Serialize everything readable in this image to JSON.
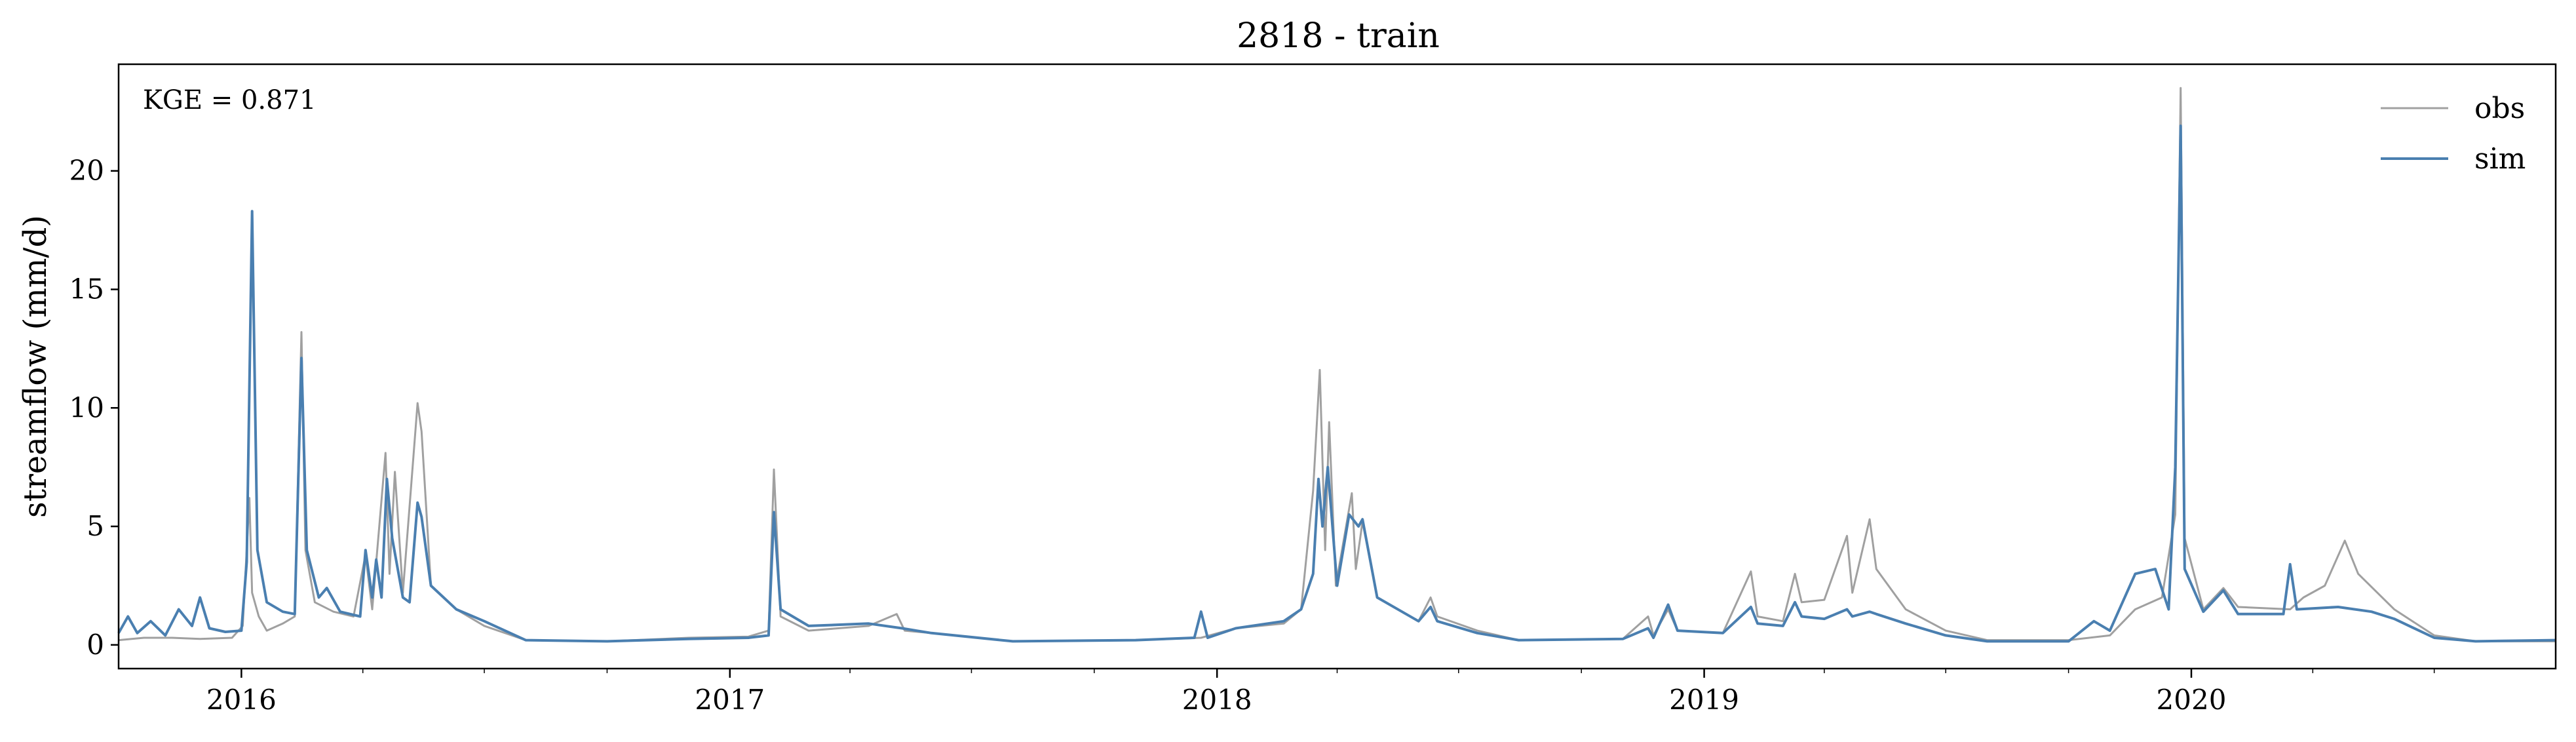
{
  "chart_data": {
    "type": "line",
    "title": "2818 - train",
    "xlabel": "",
    "ylabel": "streamflow (mm/d)",
    "annotation": "KGE = 0.871",
    "xlim": [
      "2015-10-01",
      "2020-09-30"
    ],
    "ylim": [
      -1.0,
      24.5
    ],
    "x_ticks": [
      "2016-01-01",
      "2017-01-01",
      "2018-01-01",
      "2019-01-01",
      "2020-01-01"
    ],
    "x_tick_labels": [
      "2016",
      "2017",
      "2018",
      "2019",
      "2020"
    ],
    "y_ticks": [
      0,
      5,
      10,
      15,
      20
    ],
    "y_tick_labels": [
      "0",
      "5",
      "10",
      "15",
      "20"
    ],
    "legend_position": "top-right",
    "grid": false,
    "series": [
      {
        "name": "obs",
        "color": "#a0a0a0",
        "points": [
          [
            "2015-10-01",
            0.2
          ],
          [
            "2015-10-20",
            0.3
          ],
          [
            "2015-11-10",
            0.3
          ],
          [
            "2015-12-01",
            0.25
          ],
          [
            "2015-12-25",
            0.3
          ],
          [
            "2016-01-02",
            0.8
          ],
          [
            "2016-01-07",
            6.2
          ],
          [
            "2016-01-09",
            2.2
          ],
          [
            "2016-01-14",
            1.2
          ],
          [
            "2016-01-20",
            0.6
          ],
          [
            "2016-02-01",
            0.9
          ],
          [
            "2016-02-10",
            1.2
          ],
          [
            "2016-02-15",
            13.2
          ],
          [
            "2016-02-18",
            4.0
          ],
          [
            "2016-02-25",
            1.8
          ],
          [
            "2016-03-10",
            1.4
          ],
          [
            "2016-03-25",
            1.2
          ],
          [
            "2016-04-03",
            3.8
          ],
          [
            "2016-04-08",
            1.5
          ],
          [
            "2016-04-18",
            8.1
          ],
          [
            "2016-04-21",
            3.0
          ],
          [
            "2016-04-25",
            7.3
          ],
          [
            "2016-05-01",
            2.2
          ],
          [
            "2016-05-12",
            10.2
          ],
          [
            "2016-05-15",
            9.0
          ],
          [
            "2016-05-22",
            2.5
          ],
          [
            "2016-06-10",
            1.5
          ],
          [
            "2016-07-01",
            0.8
          ],
          [
            "2016-08-01",
            0.2
          ],
          [
            "2016-10-01",
            0.15
          ],
          [
            "2016-12-01",
            0.3
          ],
          [
            "2017-01-15",
            0.35
          ],
          [
            "2017-01-30",
            0.6
          ],
          [
            "2017-02-03",
            7.4
          ],
          [
            "2017-02-08",
            1.2
          ],
          [
            "2017-03-01",
            0.6
          ],
          [
            "2017-04-15",
            0.8
          ],
          [
            "2017-05-06",
            1.3
          ],
          [
            "2017-05-12",
            0.6
          ],
          [
            "2017-06-01",
            0.5
          ],
          [
            "2017-08-01",
            0.15
          ],
          [
            "2017-11-01",
            0.2
          ],
          [
            "2017-12-20",
            0.3
          ],
          [
            "2018-01-15",
            0.7
          ],
          [
            "2018-02-20",
            0.9
          ],
          [
            "2018-03-05",
            1.5
          ],
          [
            "2018-03-14",
            6.5
          ],
          [
            "2018-03-19",
            11.6
          ],
          [
            "2018-03-23",
            4.0
          ],
          [
            "2018-03-26",
            9.4
          ],
          [
            "2018-03-31",
            2.5
          ],
          [
            "2018-04-12",
            6.4
          ],
          [
            "2018-04-15",
            3.2
          ],
          [
            "2018-04-20",
            5.2
          ],
          [
            "2018-05-01",
            2.0
          ],
          [
            "2018-06-01",
            1.0
          ],
          [
            "2018-06-10",
            2.0
          ],
          [
            "2018-06-15",
            1.2
          ],
          [
            "2018-07-15",
            0.6
          ],
          [
            "2018-08-15",
            0.2
          ],
          [
            "2018-11-01",
            0.25
          ],
          [
            "2018-11-20",
            1.2
          ],
          [
            "2018-11-24",
            0.4
          ],
          [
            "2018-12-05",
            1.5
          ],
          [
            "2018-12-12",
            0.6
          ],
          [
            "2019-01-15",
            0.5
          ],
          [
            "2019-02-05",
            3.1
          ],
          [
            "2019-02-10",
            1.2
          ],
          [
            "2019-03-01",
            1.0
          ],
          [
            "2019-03-10",
            3.0
          ],
          [
            "2019-03-15",
            1.8
          ],
          [
            "2019-04-01",
            1.9
          ],
          [
            "2019-04-18",
            4.6
          ],
          [
            "2019-04-22",
            2.2
          ],
          [
            "2019-05-05",
            5.3
          ],
          [
            "2019-05-10",
            3.2
          ],
          [
            "2019-06-01",
            1.5
          ],
          [
            "2019-07-01",
            0.6
          ],
          [
            "2019-08-01",
            0.2
          ],
          [
            "2019-10-01",
            0.2
          ],
          [
            "2019-11-01",
            0.4
          ],
          [
            "2019-11-20",
            1.5
          ],
          [
            "2019-12-10",
            2.0
          ],
          [
            "2019-12-20",
            5.5
          ],
          [
            "2019-12-24",
            23.5
          ],
          [
            "2019-12-27",
            4.5
          ],
          [
            "2020-01-10",
            1.5
          ],
          [
            "2020-01-25",
            2.4
          ],
          [
            "2020-02-05",
            1.6
          ],
          [
            "2020-03-15",
            1.5
          ],
          [
            "2020-03-25",
            2.0
          ],
          [
            "2020-04-10",
            2.5
          ],
          [
            "2020-04-25",
            4.4
          ],
          [
            "2020-05-05",
            3.0
          ],
          [
            "2020-06-01",
            1.5
          ],
          [
            "2020-07-01",
            0.4
          ],
          [
            "2020-08-01",
            0.15
          ],
          [
            "2020-09-30",
            0.15
          ]
        ]
      },
      {
        "name": "sim",
        "color": "#4a7fb0",
        "points": [
          [
            "2015-10-01",
            0.5
          ],
          [
            "2015-10-08",
            1.2
          ],
          [
            "2015-10-15",
            0.5
          ],
          [
            "2015-10-25",
            1.0
          ],
          [
            "2015-11-05",
            0.4
          ],
          [
            "2015-11-15",
            1.5
          ],
          [
            "2015-11-25",
            0.8
          ],
          [
            "2015-12-01",
            2.0
          ],
          [
            "2015-12-08",
            0.7
          ],
          [
            "2015-12-20",
            0.55
          ],
          [
            "2016-01-01",
            0.6
          ],
          [
            "2016-01-05",
            3.5
          ],
          [
            "2016-01-09",
            18.3
          ],
          [
            "2016-01-13",
            4.0
          ],
          [
            "2016-01-20",
            1.8
          ],
          [
            "2016-02-01",
            1.4
          ],
          [
            "2016-02-10",
            1.3
          ],
          [
            "2016-02-15",
            12.1
          ],
          [
            "2016-02-19",
            4.0
          ],
          [
            "2016-02-28",
            2.0
          ],
          [
            "2016-03-05",
            2.4
          ],
          [
            "2016-03-15",
            1.4
          ],
          [
            "2016-03-30",
            1.2
          ],
          [
            "2016-04-03",
            4.0
          ],
          [
            "2016-04-08",
            2.0
          ],
          [
            "2016-04-11",
            3.6
          ],
          [
            "2016-04-15",
            2.0
          ],
          [
            "2016-04-19",
            7.0
          ],
          [
            "2016-04-23",
            4.5
          ],
          [
            "2016-05-01",
            2.0
          ],
          [
            "2016-05-06",
            1.8
          ],
          [
            "2016-05-12",
            6.0
          ],
          [
            "2016-05-15",
            5.4
          ],
          [
            "2016-05-22",
            2.5
          ],
          [
            "2016-06-10",
            1.5
          ],
          [
            "2016-07-01",
            1.0
          ],
          [
            "2016-08-01",
            0.2
          ],
          [
            "2016-10-01",
            0.15
          ],
          [
            "2016-12-01",
            0.25
          ],
          [
            "2017-01-15",
            0.3
          ],
          [
            "2017-01-30",
            0.4
          ],
          [
            "2017-02-03",
            5.6
          ],
          [
            "2017-02-08",
            1.5
          ],
          [
            "2017-03-01",
            0.8
          ],
          [
            "2017-04-15",
            0.9
          ],
          [
            "2017-05-10",
            0.7
          ],
          [
            "2017-06-01",
            0.5
          ],
          [
            "2017-08-01",
            0.15
          ],
          [
            "2017-11-01",
            0.2
          ],
          [
            "2017-12-15",
            0.3
          ],
          [
            "2017-12-20",
            1.4
          ],
          [
            "2017-12-25",
            0.3
          ],
          [
            "2018-01-15",
            0.7
          ],
          [
            "2018-02-20",
            1.0
          ],
          [
            "2018-03-05",
            1.5
          ],
          [
            "2018-03-14",
            3.0
          ],
          [
            "2018-03-18",
            7.0
          ],
          [
            "2018-03-21",
            5.0
          ],
          [
            "2018-03-25",
            7.5
          ],
          [
            "2018-04-01",
            2.5
          ],
          [
            "2018-04-10",
            5.5
          ],
          [
            "2018-04-17",
            5.0
          ],
          [
            "2018-04-20",
            5.3
          ],
          [
            "2018-05-01",
            2.0
          ],
          [
            "2018-06-01",
            1.0
          ],
          [
            "2018-06-10",
            1.6
          ],
          [
            "2018-06-15",
            1.0
          ],
          [
            "2018-07-15",
            0.5
          ],
          [
            "2018-08-15",
            0.2
          ],
          [
            "2018-11-01",
            0.25
          ],
          [
            "2018-11-20",
            0.7
          ],
          [
            "2018-11-24",
            0.3
          ],
          [
            "2018-12-05",
            1.7
          ],
          [
            "2018-12-12",
            0.6
          ],
          [
            "2019-01-15",
            0.5
          ],
          [
            "2019-02-05",
            1.6
          ],
          [
            "2019-02-10",
            0.9
          ],
          [
            "2019-03-01",
            0.8
          ],
          [
            "2019-03-10",
            1.8
          ],
          [
            "2019-03-15",
            1.2
          ],
          [
            "2019-04-01",
            1.1
          ],
          [
            "2019-04-18",
            1.5
          ],
          [
            "2019-04-22",
            1.2
          ],
          [
            "2019-05-05",
            1.4
          ],
          [
            "2019-05-10",
            1.3
          ],
          [
            "2019-06-01",
            0.9
          ],
          [
            "2019-07-01",
            0.4
          ],
          [
            "2019-08-01",
            0.15
          ],
          [
            "2019-10-01",
            0.15
          ],
          [
            "2019-10-20",
            1.0
          ],
          [
            "2019-11-01",
            0.6
          ],
          [
            "2019-11-20",
            3.0
          ],
          [
            "2019-12-05",
            3.2
          ],
          [
            "2019-12-15",
            1.5
          ],
          [
            "2019-12-20",
            7.5
          ],
          [
            "2019-12-24",
            21.9
          ],
          [
            "2019-12-27",
            3.2
          ],
          [
            "2020-01-10",
            1.4
          ],
          [
            "2020-01-25",
            2.3
          ],
          [
            "2020-02-05",
            1.3
          ],
          [
            "2020-03-10",
            1.3
          ],
          [
            "2020-03-15",
            3.4
          ],
          [
            "2020-03-20",
            1.5
          ],
          [
            "2020-04-20",
            1.6
          ],
          [
            "2020-05-15",
            1.4
          ],
          [
            "2020-06-01",
            1.1
          ],
          [
            "2020-07-01",
            0.3
          ],
          [
            "2020-08-01",
            0.15
          ],
          [
            "2020-09-30",
            0.2
          ]
        ]
      }
    ]
  }
}
